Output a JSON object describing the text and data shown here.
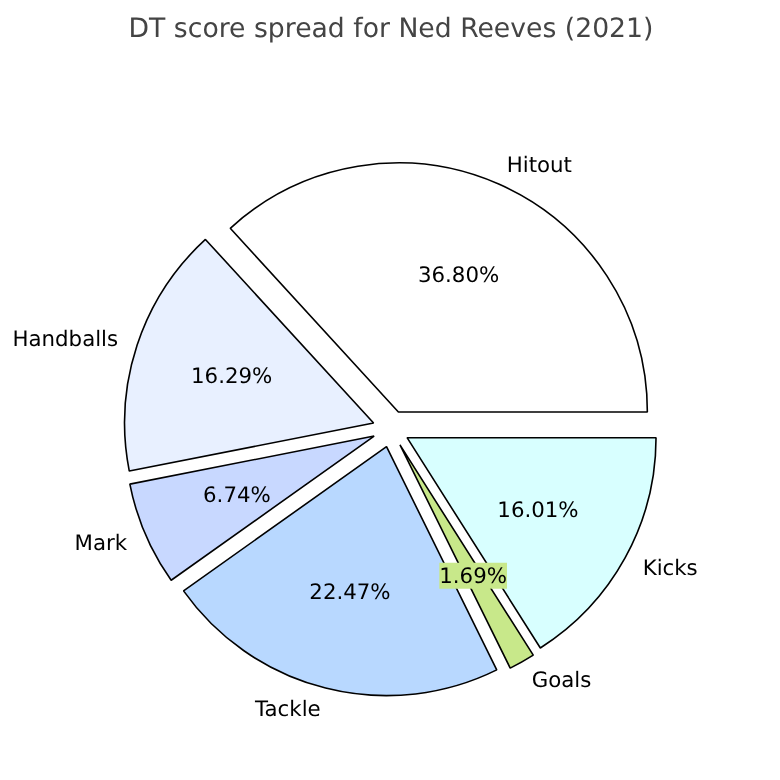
{
  "chart_data": {
    "type": "pie",
    "title": "DT score spread for Ned Reeves (2021)",
    "categories": [
      "Hitout",
      "Handballs",
      "Mark",
      "Tackle",
      "Goals",
      "Kicks"
    ],
    "values": [
      36.8,
      16.29,
      6.74,
      22.47,
      1.69,
      16.01
    ],
    "value_labels": [
      "36.80%",
      "16.29%",
      "6.74%",
      "22.47%",
      "1.69%",
      "16.01%"
    ],
    "colors": [
      "#ffffff",
      "#e8f0ff",
      "#c8d8ff",
      "#b8d8ff",
      "#c8e88a",
      "#d8ffff"
    ],
    "legend": false
  }
}
